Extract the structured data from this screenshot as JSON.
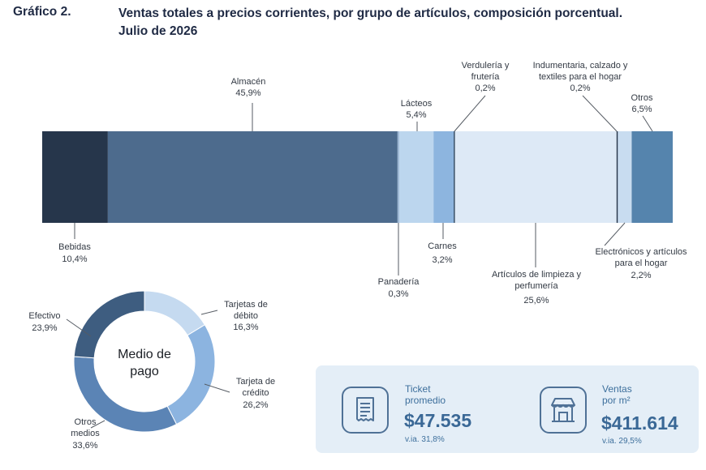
{
  "header": {
    "figure_number": "Gráfico 2.",
    "title_line1": "Ventas totales a precios corrientes, por grupo de artículos, composición porcentual.",
    "title_line2": "Julio de 2026"
  },
  "chart_data": [
    {
      "type": "stacked-bar-100",
      "title": "Ventas totales a precios corrientes, por grupo de artículos, composición porcentual. Julio de 2026",
      "segments": [
        {
          "name": "Bebidas",
          "value": 10.4,
          "value_label": "10,4%",
          "color": "#26364b"
        },
        {
          "name": "Almacén",
          "value": 45.9,
          "value_label": "45,9%",
          "color": "#4d6b8d"
        },
        {
          "name": "Panadería",
          "value": 0.3,
          "value_label": "0,3%",
          "color": "#9fb9d6"
        },
        {
          "name": "Lácteos",
          "value": 5.4,
          "value_label": "5,4%",
          "color": "#bcd6ee"
        },
        {
          "name": "Carnes",
          "value": 3.2,
          "value_label": "3,2%",
          "color": "#8db5df"
        },
        {
          "name": "Verdulería y frutería",
          "value": 0.2,
          "value_label": "0,2%",
          "color": "#2f4762"
        },
        {
          "name": "Artículos de limpieza y perfumería",
          "value": 25.6,
          "value_label": "25,6%",
          "color": "#dde9f6"
        },
        {
          "name": "Indumentaria, calzado y textiles para el hogar",
          "value": 0.2,
          "value_label": "0,2%",
          "color": "#26364b"
        },
        {
          "name": "Electrónicos y artículos para el hogar",
          "value": 2.2,
          "value_label": "2,2%",
          "color": "#c8dcf0"
        },
        {
          "name": "Otros",
          "value": 6.5,
          "value_label": "6,5%",
          "color": "#5584ad"
        }
      ],
      "labels": {
        "bebidas": {
          "line1": "Bebidas",
          "value": "10,4%"
        },
        "almacen": {
          "line1": "Almacén",
          "value": "45,9%"
        },
        "panaderia": {
          "line1": "Panadería",
          "value": "0,3%"
        },
        "lacteos": {
          "line1": "Lácteos",
          "value": "5,4%"
        },
        "carnes": {
          "line1": "Carnes",
          "value": "3,2%"
        },
        "verduleria": {
          "line1": "Verdulería y",
          "line2": "frutería",
          "value": "0,2%"
        },
        "limpieza": {
          "line1": "Artículos de limpieza y",
          "line2": "perfumería",
          "value": "25,6%"
        },
        "indumentaria": {
          "line1": "Indumentaria, calzado y",
          "line2": "textiles para el hogar",
          "value": "0,2%"
        },
        "electronicos": {
          "line1": "Electrónicos y artículos",
          "line2": "para el hogar",
          "value": "2,2%"
        },
        "otros": {
          "line1": "Otros",
          "value": "6,5%"
        }
      }
    },
    {
      "type": "pie",
      "donut": true,
      "center_label_line1": "Medio de",
      "center_label_line2": "pago",
      "segments": [
        {
          "name": "Tarjetas de débito",
          "value": 16.3,
          "value_label": "16,3%",
          "color": "#c5daf0"
        },
        {
          "name": "Tarjeta de crédito",
          "value": 26.2,
          "value_label": "26,2%",
          "color": "#8cb4e0"
        },
        {
          "name": "Otros medios",
          "value": 33.6,
          "value_label": "33,6%",
          "color": "#5b84b5"
        },
        {
          "name": "Efectivo",
          "value": 23.9,
          "value_label": "23,9%",
          "color": "#3e5d80"
        }
      ],
      "labels": {
        "debito": {
          "line1": "Tarjetas de",
          "line2": "débito",
          "value": "16,3%"
        },
        "credito": {
          "line1": "Tarjeta de",
          "line2": "crédito",
          "value": "26,2%"
        },
        "otros": {
          "line1": "Otros",
          "line2": "medios",
          "value": "33,6%"
        },
        "efectivo": {
          "line1": "Efectivo",
          "value": "23,9%"
        }
      }
    }
  ],
  "kpis": {
    "ticket": {
      "icon": "receipt-icon",
      "label_line1": "Ticket",
      "label_line2": "promedio",
      "value": "$47.535",
      "change": "v.ia. 31,8%"
    },
    "ventas": {
      "icon": "store-icon",
      "label_line1": "Ventas",
      "label_line2": "por m²",
      "value": "$411.614",
      "change": "v.ia. 29,5%"
    }
  }
}
